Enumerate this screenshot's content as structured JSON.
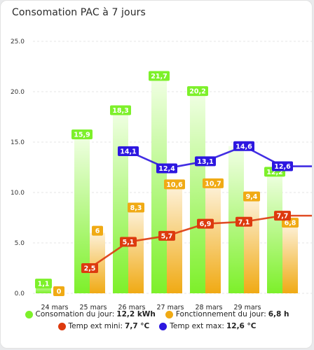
{
  "card": {
    "title": "Consomation PAC à 7 jours"
  },
  "colors": {
    "consumption": "#7df02a",
    "running": "#f0aa14",
    "temp_min": "#dd3a0e",
    "temp_max": "#2d17e0",
    "grid": "#e4e4e4"
  },
  "legend": [
    {
      "label": "Consomation du jour:",
      "value": "12,2 kWh",
      "color_key": "consumption"
    },
    {
      "label": "Fonctionnement du jour:",
      "value": "6,8 h",
      "color_key": "running"
    },
    {
      "label": "Temp ext mini:",
      "value": "7,7 °C",
      "color_key": "temp_min"
    },
    {
      "label": "Temp ext max:",
      "value": "12,6 °C",
      "color_key": "temp_max"
    }
  ],
  "chart_data": {
    "type": "bar",
    "categories": [
      "24 mars",
      "25 mars",
      "26 mars",
      "27 mars",
      "28 mars",
      "29 mars",
      ""
    ],
    "ylim": [
      0,
      25
    ],
    "yticks": [
      "0.0",
      "5.0",
      "10.0",
      "15.0",
      "20.0",
      "25.0"
    ],
    "grid": true,
    "series": [
      {
        "name": "Consomation du jour",
        "kind": "bar",
        "values": [
          1.1,
          15.9,
          18.3,
          21.7,
          20.2,
          14.6,
          12.2
        ],
        "labels": [
          "1,1",
          "15,9",
          "18,3",
          "21,7",
          "20,2",
          "",
          "12,2"
        ]
      },
      {
        "name": "Fonctionnement du jour",
        "kind": "bar",
        "values": [
          0,
          6,
          8.3,
          10.6,
          10.7,
          9.4,
          6.8
        ],
        "labels": [
          "0",
          "6",
          "8,3",
          "10,6",
          "10,7",
          "9,4",
          "6,8"
        ]
      },
      {
        "name": "Temp ext mini",
        "kind": "line",
        "values": [
          null,
          2.5,
          5.1,
          5.7,
          6.9,
          7.1,
          7.7
        ],
        "labels": [
          "",
          "2,5",
          "5,1",
          "5,7",
          "6,9",
          "7,1",
          "7,7"
        ]
      },
      {
        "name": "Temp ext max",
        "kind": "line",
        "values": [
          null,
          null,
          14.1,
          12.4,
          13.1,
          14.6,
          12.6
        ],
        "labels": [
          "",
          "",
          "14,1",
          "12,4",
          "13,1",
          "14,6",
          "12,6"
        ]
      }
    ]
  }
}
